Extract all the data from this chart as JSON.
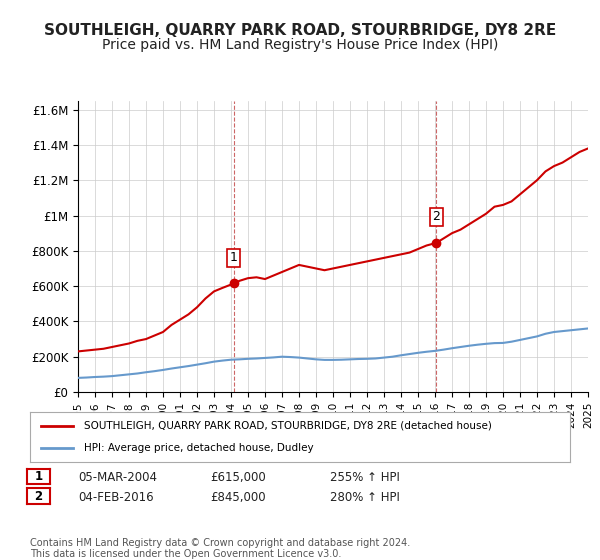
{
  "title": "SOUTHLEIGH, QUARRY PARK ROAD, STOURBRIDGE, DY8 2RE",
  "subtitle": "Price paid vs. HM Land Registry's House Price Index (HPI)",
  "title_fontsize": 11,
  "subtitle_fontsize": 10,
  "background_color": "#ffffff",
  "plot_bg_color": "#ffffff",
  "grid_color": "#cccccc",
  "xmin": 1995,
  "xmax": 2025,
  "ymin": 0,
  "ymax": 1650000,
  "yticks": [
    0,
    200000,
    400000,
    600000,
    800000,
    1000000,
    1200000,
    1400000,
    1600000
  ],
  "ytick_labels": [
    "£0",
    "£200K",
    "£400K",
    "£600K",
    "£800K",
    "£1M",
    "£1.2M",
    "£1.4M",
    "£1.6M"
  ],
  "xtick_years": [
    1995,
    1996,
    1997,
    1998,
    1999,
    2000,
    2001,
    2002,
    2003,
    2004,
    2005,
    2006,
    2007,
    2008,
    2009,
    2010,
    2011,
    2012,
    2013,
    2014,
    2015,
    2016,
    2017,
    2018,
    2019,
    2020,
    2021,
    2022,
    2023,
    2024,
    2025
  ],
  "red_line_color": "#cc0000",
  "blue_line_color": "#6699cc",
  "sale1_x": 2004.17,
  "sale1_y": 615000,
  "sale1_label": "1",
  "sale2_x": 2016.08,
  "sale2_y": 845000,
  "sale2_label": "2",
  "vline1_color": "#cc0000",
  "vline2_color": "#cc0000",
  "annotation_box_color": "#cc0000",
  "legend_line1": "SOUTHLEIGH, QUARRY PARK ROAD, STOURBRIDGE, DY8 2RE (detached house)",
  "legend_line2": "HPI: Average price, detached house, Dudley",
  "table_row1": [
    "1",
    "05-MAR-2004",
    "£615,000",
    "255% ↑ HPI"
  ],
  "table_row2": [
    "2",
    "04-FEB-2016",
    "£845,000",
    "280% ↑ HPI"
  ],
  "footer": "Contains HM Land Registry data © Crown copyright and database right 2024.\nThis data is licensed under the Open Government Licence v3.0.",
  "red_x": [
    1995.0,
    1995.5,
    1996.0,
    1996.5,
    1997.0,
    1997.5,
    1998.0,
    1998.5,
    1999.0,
    1999.5,
    2000.0,
    2000.5,
    2001.0,
    2001.5,
    2002.0,
    2002.5,
    2003.0,
    2003.5,
    2004.17,
    2004.5,
    2005.0,
    2005.5,
    2006.0,
    2006.5,
    2007.0,
    2007.5,
    2008.0,
    2008.5,
    2009.0,
    2009.5,
    2010.0,
    2010.5,
    2011.0,
    2011.5,
    2012.0,
    2012.5,
    2013.0,
    2013.5,
    2014.0,
    2014.5,
    2015.0,
    2015.5,
    2016.08,
    2016.5,
    2017.0,
    2017.5,
    2018.0,
    2018.5,
    2019.0,
    2019.5,
    2020.0,
    2020.5,
    2021.0,
    2021.5,
    2022.0,
    2022.5,
    2023.0,
    2023.5,
    2024.0,
    2024.5,
    2025.0
  ],
  "red_y": [
    230000,
    235000,
    240000,
    245000,
    255000,
    265000,
    275000,
    290000,
    300000,
    320000,
    340000,
    380000,
    410000,
    440000,
    480000,
    530000,
    570000,
    590000,
    615000,
    630000,
    645000,
    650000,
    640000,
    660000,
    680000,
    700000,
    720000,
    710000,
    700000,
    690000,
    700000,
    710000,
    720000,
    730000,
    740000,
    750000,
    760000,
    770000,
    780000,
    790000,
    810000,
    830000,
    845000,
    870000,
    900000,
    920000,
    950000,
    980000,
    1010000,
    1050000,
    1060000,
    1080000,
    1120000,
    1160000,
    1200000,
    1250000,
    1280000,
    1300000,
    1330000,
    1360000,
    1380000
  ],
  "blue_x": [
    1995.0,
    1995.5,
    1996.0,
    1996.5,
    1997.0,
    1997.5,
    1998.0,
    1998.5,
    1999.0,
    1999.5,
    2000.0,
    2000.5,
    2001.0,
    2001.5,
    2002.0,
    2002.5,
    2003.0,
    2003.5,
    2004.0,
    2004.5,
    2005.0,
    2005.5,
    2006.0,
    2006.5,
    2007.0,
    2007.5,
    2008.0,
    2008.5,
    2009.0,
    2009.5,
    2010.0,
    2010.5,
    2011.0,
    2011.5,
    2012.0,
    2012.5,
    2013.0,
    2013.5,
    2014.0,
    2014.5,
    2015.0,
    2015.5,
    2016.0,
    2016.5,
    2017.0,
    2017.5,
    2018.0,
    2018.5,
    2019.0,
    2019.5,
    2020.0,
    2020.5,
    2021.0,
    2021.5,
    2022.0,
    2022.5,
    2023.0,
    2023.5,
    2024.0,
    2024.5,
    2025.0
  ],
  "blue_y": [
    80000,
    82000,
    85000,
    87000,
    90000,
    95000,
    100000,
    105000,
    112000,
    118000,
    125000,
    133000,
    140000,
    147000,
    155000,
    163000,
    172000,
    178000,
    183000,
    185000,
    188000,
    190000,
    193000,
    196000,
    200000,
    198000,
    195000,
    190000,
    185000,
    182000,
    182000,
    183000,
    185000,
    187000,
    188000,
    190000,
    195000,
    200000,
    208000,
    215000,
    222000,
    228000,
    233000,
    240000,
    248000,
    255000,
    262000,
    268000,
    273000,
    277000,
    278000,
    285000,
    295000,
    305000,
    315000,
    330000,
    340000,
    345000,
    350000,
    355000,
    360000
  ]
}
